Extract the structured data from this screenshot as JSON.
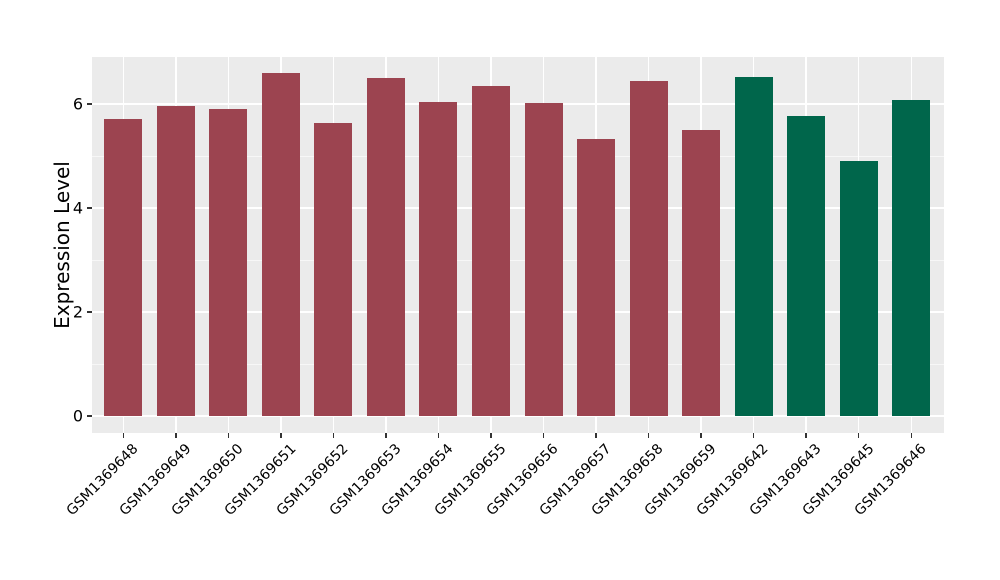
{
  "chart_data": {
    "type": "bar",
    "title": "",
    "xlabel": "",
    "ylabel": "Expression Level",
    "categories": [
      "GSM1369648",
      "GSM1369649",
      "GSM1369650",
      "GSM1369651",
      "GSM1369652",
      "GSM1369653",
      "GSM1369654",
      "GSM1369655",
      "GSM1369656",
      "GSM1369657",
      "GSM1369658",
      "GSM1369659",
      "GSM1369642",
      "GSM1369643",
      "GSM1369645",
      "GSM1369646"
    ],
    "values": [
      5.72,
      5.96,
      5.91,
      6.59,
      5.63,
      6.5,
      6.04,
      6.35,
      6.02,
      5.33,
      6.44,
      5.5,
      6.52,
      5.77,
      4.9,
      6.08
    ],
    "bar_color_keys": [
      "maroon",
      "maroon",
      "maroon",
      "maroon",
      "maroon",
      "maroon",
      "maroon",
      "maroon",
      "maroon",
      "maroon",
      "maroon",
      "maroon",
      "green",
      "green",
      "green",
      "green"
    ],
    "colors": {
      "maroon": "#9C4450",
      "green": "#00664B",
      "panel_bg": "#EBEBEB",
      "grid": "#FFFFFF",
      "tick": "#333333",
      "text": "#000000"
    },
    "ylim": [
      -0.33,
      6.91
    ],
    "yticks": [
      0,
      2,
      4,
      6
    ],
    "ytick_labels": [
      "0",
      "2",
      "4",
      "6"
    ],
    "minor_yticks": [
      1,
      3,
      5
    ],
    "grid": "horizontal major+minor, vertical major at category centers",
    "legend": "none",
    "x_tick_rotation_deg": 45
  }
}
